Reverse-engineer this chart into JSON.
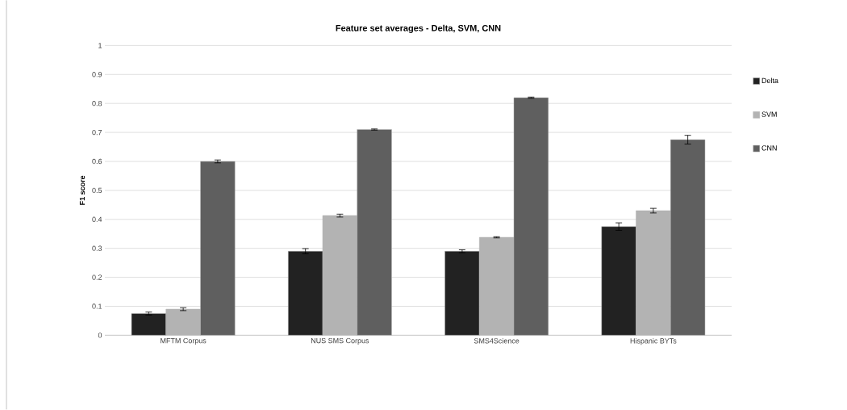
{
  "chart_data": {
    "type": "bar",
    "title": "Feature set averages - Delta, SVM, CNN",
    "ylabel": "F1 score",
    "categories": [
      "MFTM Corpus",
      "NUS SMS Corpus",
      "SMS4Science",
      "Hispanic BYTs"
    ],
    "series": [
      {
        "name": "Delta",
        "color": "#222222",
        "values": [
          0.075,
          0.29,
          0.29,
          0.375
        ],
        "errors": [
          0.005,
          0.009,
          0.005,
          0.013
        ]
      },
      {
        "name": "SVM",
        "color": "#b3b3b3",
        "values": [
          0.09,
          0.413,
          0.338,
          0.43
        ],
        "errors": [
          0.005,
          0.005,
          0.002,
          0.008
        ]
      },
      {
        "name": "CNN",
        "color": "#5f5f5f",
        "values": [
          0.6,
          0.71,
          0.82,
          0.675
        ],
        "errors": [
          0.005,
          0.002,
          0.002,
          0.015
        ]
      }
    ],
    "ylim": [
      0,
      1
    ],
    "yticks": [
      0,
      0.1,
      0.2,
      0.3,
      0.4,
      0.5,
      0.6,
      0.7,
      0.8,
      0.9,
      1
    ],
    "grid": "y",
    "legend": "right"
  }
}
